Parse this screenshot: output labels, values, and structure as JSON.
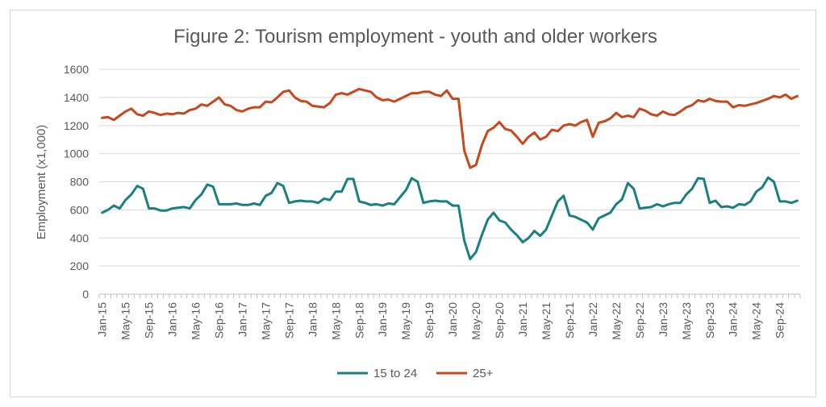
{
  "chart_data": {
    "type": "line",
    "title": "Figure 2: Tourism employment - youth and older workers",
    "xlabel": "",
    "ylabel": "Employment (x1,000)",
    "ylim": [
      0,
      1600
    ],
    "yticks": [
      0,
      200,
      400,
      600,
      800,
      1000,
      1200,
      1400,
      1600
    ],
    "grid": true,
    "legend_position": "bottom",
    "start_month": "Jan-15",
    "x_tick_labels": [
      "Jan-15",
      "May-15",
      "Sep-15",
      "Jan-16",
      "May-16",
      "Sep-16",
      "Jan-17",
      "May-17",
      "Sep-17",
      "Jan-18",
      "May-18",
      "Sep-18",
      "Jan-19",
      "May-19",
      "Sep-19",
      "Jan-20",
      "May-20",
      "Sep-20",
      "Jan-21",
      "May-21",
      "Sep-21",
      "Jan-22",
      "May-22",
      "Sep-22",
      "Jan-23",
      "May-23",
      "Sep-23",
      "Jan-24",
      "May-24",
      "Sep-24"
    ],
    "series": [
      {
        "name": "15 to 24",
        "color": "#1a7f7f",
        "values": [
          580,
          600,
          630,
          610,
          670,
          710,
          770,
          750,
          610,
          610,
          595,
          595,
          610,
          615,
          620,
          610,
          670,
          710,
          780,
          765,
          640,
          640,
          640,
          645,
          635,
          635,
          645,
          635,
          700,
          720,
          790,
          770,
          650,
          660,
          665,
          660,
          660,
          650,
          680,
          670,
          730,
          730,
          820,
          820,
          660,
          650,
          635,
          640,
          630,
          645,
          640,
          690,
          740,
          825,
          800,
          650,
          660,
          665,
          660,
          660,
          630,
          630,
          380,
          250,
          300,
          420,
          530,
          580,
          525,
          510,
          460,
          420,
          370,
          400,
          450,
          415,
          460,
          560,
          660,
          700,
          560,
          550,
          530,
          510,
          460,
          540,
          560,
          580,
          640,
          675,
          790,
          750,
          610,
          615,
          620,
          640,
          625,
          640,
          650,
          650,
          710,
          750,
          825,
          820,
          650,
          665,
          620,
          625,
          615,
          640,
          635,
          660,
          730,
          760,
          830,
          800,
          660,
          660,
          650,
          665
        ]
      },
      {
        "name": "25+",
        "color": "#c8481e",
        "values": [
          1255,
          1260,
          1240,
          1270,
          1300,
          1320,
          1280,
          1270,
          1300,
          1290,
          1275,
          1285,
          1280,
          1290,
          1285,
          1310,
          1320,
          1350,
          1340,
          1370,
          1400,
          1350,
          1340,
          1310,
          1300,
          1320,
          1330,
          1330,
          1370,
          1365,
          1400,
          1440,
          1450,
          1400,
          1375,
          1370,
          1340,
          1335,
          1330,
          1360,
          1420,
          1430,
          1420,
          1440,
          1460,
          1450,
          1440,
          1400,
          1380,
          1385,
          1370,
          1390,
          1410,
          1430,
          1430,
          1440,
          1440,
          1420,
          1410,
          1450,
          1390,
          1390,
          1020,
          900,
          920,
          1060,
          1160,
          1185,
          1225,
          1175,
          1165,
          1120,
          1070,
          1120,
          1150,
          1100,
          1120,
          1170,
          1160,
          1200,
          1210,
          1200,
          1225,
          1240,
          1120,
          1220,
          1230,
          1250,
          1290,
          1260,
          1270,
          1260,
          1320,
          1305,
          1280,
          1270,
          1300,
          1280,
          1275,
          1300,
          1330,
          1345,
          1380,
          1370,
          1390,
          1375,
          1370,
          1370,
          1330,
          1345,
          1340,
          1350,
          1360,
          1375,
          1390,
          1410,
          1400,
          1420,
          1390,
          1410
        ]
      }
    ]
  }
}
